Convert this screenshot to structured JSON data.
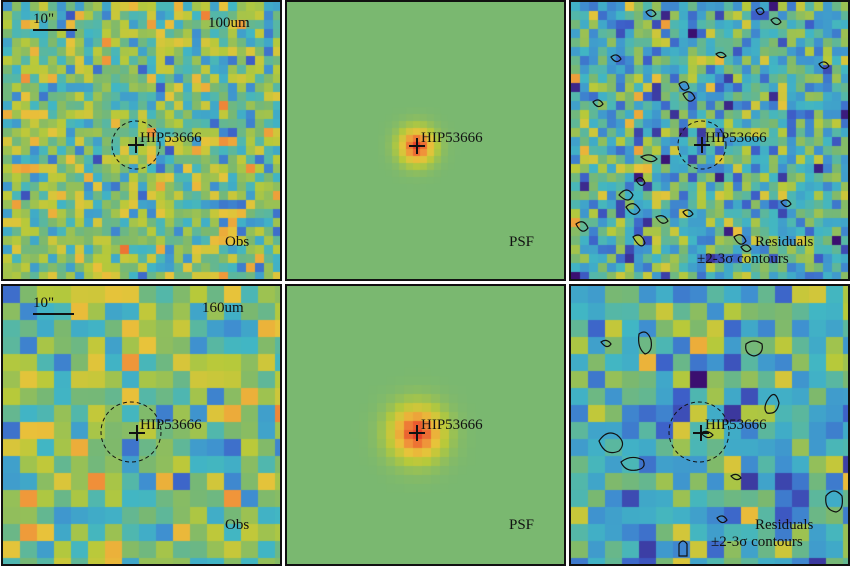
{
  "panels": [
    {
      "band": "100um",
      "label": "Obs",
      "target": "HIP53666",
      "scalebar": "10\""
    },
    {
      "label": "PSF",
      "target": "HIP53666"
    },
    {
      "label": "Residuals",
      "label2": "±2-3σ contours",
      "target": "HIP53666"
    },
    {
      "band": "160um",
      "label": "Obs",
      "target": "HIP53666",
      "scalebar": "10\""
    },
    {
      "label": "PSF",
      "target": "HIP53666"
    },
    {
      "label": "Residuals",
      "label2": "±2-3σ contours",
      "target": "HIP53666"
    }
  ],
  "colors": {
    "frame": "#111111",
    "colormap": [
      "#3b0f70",
      "#3d5ec8",
      "#3f8fd0",
      "#41b6c4",
      "#7ab870",
      "#b7c93a",
      "#e8c33a",
      "#f0923a",
      "#e8402a"
    ]
  }
}
